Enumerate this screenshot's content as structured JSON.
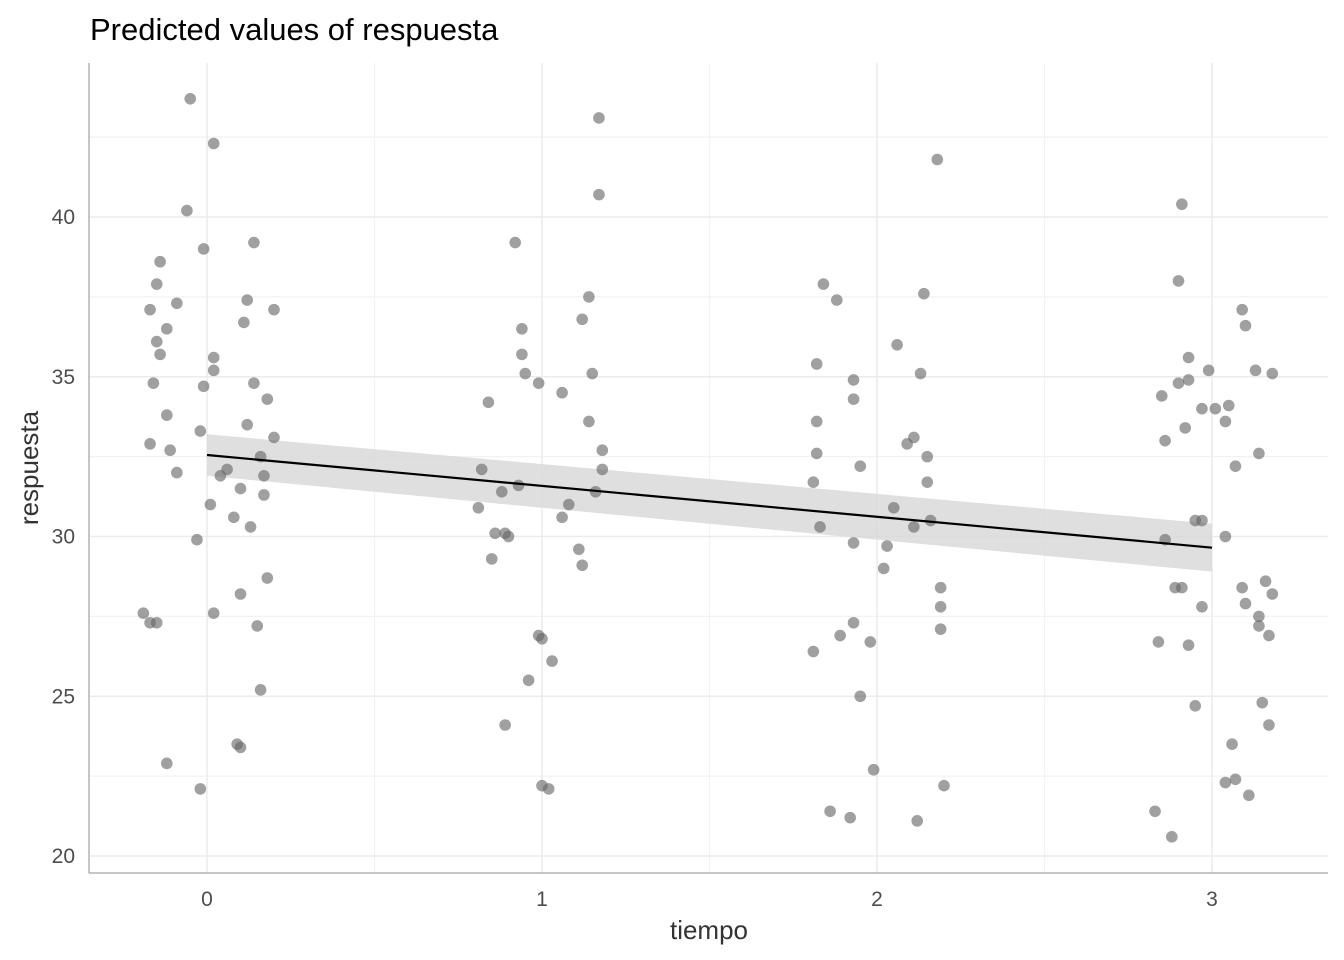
{
  "chart_data": {
    "type": "scatter",
    "title": "Predicted values of respuesta",
    "xlabel": "tiempo",
    "ylabel": "respuesta",
    "xlim": [
      -0.35,
      3.35
    ],
    "ylim": [
      19.5,
      45.0
    ],
    "x_ticks": [
      0,
      1,
      2,
      3
    ],
    "x_tick_labels": [
      "0",
      "1",
      "2",
      "3"
    ],
    "y_ticks": [
      20,
      25,
      30,
      35,
      40
    ],
    "y_tick_labels": [
      "20",
      "25",
      "30",
      "35",
      "40"
    ],
    "x_minor_ticks": [
      0.5,
      1.5,
      2.5
    ],
    "y_minor_ticks": [
      22.5,
      27.5,
      32.5,
      37.5,
      42.5
    ],
    "grid": true,
    "colors": {
      "points": "#666666",
      "line": "#000000",
      "ribbon": "#d9d9d9",
      "grid": "#ebebeb"
    },
    "fit_line": {
      "x": [
        0,
        3
      ],
      "y": [
        32.55,
        29.65
      ]
    },
    "ribbon": {
      "x": [
        0,
        3
      ],
      "upper": [
        33.2,
        30.4
      ],
      "lower": [
        31.9,
        28.9
      ]
    },
    "points": [
      {
        "x": -0.05,
        "y": 43.7
      },
      {
        "x": 0.02,
        "y": 42.3
      },
      {
        "x": -0.06,
        "y": 40.2
      },
      {
        "x": -0.01,
        "y": 39.0
      },
      {
        "x": 0.14,
        "y": 39.2
      },
      {
        "x": -0.14,
        "y": 38.6
      },
      {
        "x": -0.15,
        "y": 37.9
      },
      {
        "x": -0.09,
        "y": 37.3
      },
      {
        "x": -0.17,
        "y": 37.1
      },
      {
        "x": 0.12,
        "y": 37.4
      },
      {
        "x": 0.2,
        "y": 37.1
      },
      {
        "x": 0.11,
        "y": 36.7
      },
      {
        "x": -0.12,
        "y": 36.5
      },
      {
        "x": -0.15,
        "y": 36.1
      },
      {
        "x": -0.14,
        "y": 35.7
      },
      {
        "x": 0.02,
        "y": 35.6
      },
      {
        "x": 0.02,
        "y": 35.2
      },
      {
        "x": -0.16,
        "y": 34.8
      },
      {
        "x": -0.01,
        "y": 34.7
      },
      {
        "x": 0.14,
        "y": 34.8
      },
      {
        "x": 0.18,
        "y": 34.3
      },
      {
        "x": -0.12,
        "y": 33.8
      },
      {
        "x": 0.12,
        "y": 33.5
      },
      {
        "x": -0.02,
        "y": 33.3
      },
      {
        "x": 0.2,
        "y": 33.1
      },
      {
        "x": -0.17,
        "y": 32.9
      },
      {
        "x": -0.11,
        "y": 32.7
      },
      {
        "x": 0.16,
        "y": 32.5
      },
      {
        "x": 0.06,
        "y": 32.1
      },
      {
        "x": -0.09,
        "y": 32.0
      },
      {
        "x": 0.04,
        "y": 31.9
      },
      {
        "x": 0.17,
        "y": 31.9
      },
      {
        "x": 0.1,
        "y": 31.5
      },
      {
        "x": 0.17,
        "y": 31.3
      },
      {
        "x": 0.01,
        "y": 31.0
      },
      {
        "x": 0.08,
        "y": 30.6
      },
      {
        "x": 0.13,
        "y": 30.3
      },
      {
        "x": -0.03,
        "y": 29.9
      },
      {
        "x": 0.18,
        "y": 28.7
      },
      {
        "x": 0.1,
        "y": 28.2
      },
      {
        "x": -0.19,
        "y": 27.6
      },
      {
        "x": 0.02,
        "y": 27.6
      },
      {
        "x": -0.17,
        "y": 27.3
      },
      {
        "x": -0.15,
        "y": 27.3
      },
      {
        "x": 0.15,
        "y": 27.2
      },
      {
        "x": 0.16,
        "y": 25.2
      },
      {
        "x": 0.09,
        "y": 23.5
      },
      {
        "x": 0.1,
        "y": 23.4
      },
      {
        "x": -0.12,
        "y": 22.9
      },
      {
        "x": -0.02,
        "y": 22.1
      },
      {
        "x": 1.17,
        "y": 43.1
      },
      {
        "x": 1.17,
        "y": 40.7
      },
      {
        "x": 0.92,
        "y": 39.2
      },
      {
        "x": 1.14,
        "y": 37.5
      },
      {
        "x": 1.12,
        "y": 36.8
      },
      {
        "x": 0.94,
        "y": 36.5
      },
      {
        "x": 0.94,
        "y": 35.7
      },
      {
        "x": 0.95,
        "y": 35.1
      },
      {
        "x": 1.15,
        "y": 35.1
      },
      {
        "x": 0.99,
        "y": 34.8
      },
      {
        "x": 1.06,
        "y": 34.5
      },
      {
        "x": 0.84,
        "y": 34.2
      },
      {
        "x": 1.14,
        "y": 33.6
      },
      {
        "x": 1.18,
        "y": 32.7
      },
      {
        "x": 0.82,
        "y": 32.1
      },
      {
        "x": 1.18,
        "y": 32.1
      },
      {
        "x": 0.93,
        "y": 31.6
      },
      {
        "x": 0.88,
        "y": 31.4
      },
      {
        "x": 1.16,
        "y": 31.4
      },
      {
        "x": 1.08,
        "y": 31.0
      },
      {
        "x": 0.81,
        "y": 30.9
      },
      {
        "x": 1.06,
        "y": 30.6
      },
      {
        "x": 0.86,
        "y": 30.1
      },
      {
        "x": 0.89,
        "y": 30.1
      },
      {
        "x": 0.9,
        "y": 30.0
      },
      {
        "x": 1.11,
        "y": 29.6
      },
      {
        "x": 0.85,
        "y": 29.3
      },
      {
        "x": 1.12,
        "y": 29.1
      },
      {
        "x": 0.99,
        "y": 26.9
      },
      {
        "x": 1.0,
        "y": 26.8
      },
      {
        "x": 1.03,
        "y": 26.1
      },
      {
        "x": 0.96,
        "y": 25.5
      },
      {
        "x": 0.89,
        "y": 24.1
      },
      {
        "x": 1.0,
        "y": 22.2
      },
      {
        "x": 1.02,
        "y": 22.1
      },
      {
        "x": 2.18,
        "y": 41.8
      },
      {
        "x": 1.84,
        "y": 37.9
      },
      {
        "x": 1.88,
        "y": 37.4
      },
      {
        "x": 2.14,
        "y": 37.6
      },
      {
        "x": 2.06,
        "y": 36.0
      },
      {
        "x": 1.82,
        "y": 35.4
      },
      {
        "x": 2.13,
        "y": 35.1
      },
      {
        "x": 1.93,
        "y": 34.9
      },
      {
        "x": 1.93,
        "y": 34.3
      },
      {
        "x": 1.82,
        "y": 33.6
      },
      {
        "x": 2.11,
        "y": 33.1
      },
      {
        "x": 2.09,
        "y": 32.9
      },
      {
        "x": 1.82,
        "y": 32.6
      },
      {
        "x": 2.15,
        "y": 32.5
      },
      {
        "x": 1.95,
        "y": 32.2
      },
      {
        "x": 1.81,
        "y": 31.7
      },
      {
        "x": 2.15,
        "y": 31.7
      },
      {
        "x": 2.05,
        "y": 30.9
      },
      {
        "x": 2.16,
        "y": 30.5
      },
      {
        "x": 1.83,
        "y": 30.3
      },
      {
        "x": 2.11,
        "y": 30.3
      },
      {
        "x": 1.93,
        "y": 29.8
      },
      {
        "x": 2.03,
        "y": 29.7
      },
      {
        "x": 2.02,
        "y": 29.0
      },
      {
        "x": 2.19,
        "y": 28.4
      },
      {
        "x": 2.19,
        "y": 27.8
      },
      {
        "x": 1.93,
        "y": 27.3
      },
      {
        "x": 2.19,
        "y": 27.1
      },
      {
        "x": 1.89,
        "y": 26.9
      },
      {
        "x": 1.98,
        "y": 26.7
      },
      {
        "x": 1.81,
        "y": 26.4
      },
      {
        "x": 1.95,
        "y": 25.0
      },
      {
        "x": 1.99,
        "y": 22.7
      },
      {
        "x": 2.2,
        "y": 22.2
      },
      {
        "x": 1.86,
        "y": 21.4
      },
      {
        "x": 1.92,
        "y": 21.2
      },
      {
        "x": 2.12,
        "y": 21.1
      },
      {
        "x": 2.91,
        "y": 40.4
      },
      {
        "x": 2.9,
        "y": 38.0
      },
      {
        "x": 3.09,
        "y": 37.1
      },
      {
        "x": 3.1,
        "y": 36.6
      },
      {
        "x": 2.93,
        "y": 35.6
      },
      {
        "x": 3.13,
        "y": 35.2
      },
      {
        "x": 2.99,
        "y": 35.2
      },
      {
        "x": 3.18,
        "y": 35.1
      },
      {
        "x": 2.93,
        "y": 34.9
      },
      {
        "x": 2.9,
        "y": 34.8
      },
      {
        "x": 2.85,
        "y": 34.4
      },
      {
        "x": 2.97,
        "y": 34.0
      },
      {
        "x": 3.01,
        "y": 34.0
      },
      {
        "x": 3.05,
        "y": 34.1
      },
      {
        "x": 3.04,
        "y": 33.6
      },
      {
        "x": 2.92,
        "y": 33.4
      },
      {
        "x": 2.86,
        "y": 33.0
      },
      {
        "x": 3.14,
        "y": 32.6
      },
      {
        "x": 3.07,
        "y": 32.2
      },
      {
        "x": 2.95,
        "y": 30.5
      },
      {
        "x": 2.97,
        "y": 30.5
      },
      {
        "x": 3.04,
        "y": 30.0
      },
      {
        "x": 2.86,
        "y": 29.9
      },
      {
        "x": 3.16,
        "y": 28.6
      },
      {
        "x": 2.89,
        "y": 28.4
      },
      {
        "x": 2.91,
        "y": 28.4
      },
      {
        "x": 3.09,
        "y": 28.4
      },
      {
        "x": 3.18,
        "y": 28.2
      },
      {
        "x": 3.1,
        "y": 27.9
      },
      {
        "x": 2.97,
        "y": 27.8
      },
      {
        "x": 3.14,
        "y": 27.5
      },
      {
        "x": 3.14,
        "y": 27.2
      },
      {
        "x": 3.17,
        "y": 26.9
      },
      {
        "x": 2.84,
        "y": 26.7
      },
      {
        "x": 2.93,
        "y": 26.6
      },
      {
        "x": 3.15,
        "y": 24.8
      },
      {
        "x": 2.95,
        "y": 24.7
      },
      {
        "x": 3.17,
        "y": 24.1
      },
      {
        "x": 3.06,
        "y": 23.5
      },
      {
        "x": 3.07,
        "y": 22.4
      },
      {
        "x": 3.04,
        "y": 22.3
      },
      {
        "x": 3.11,
        "y": 21.9
      },
      {
        "x": 2.83,
        "y": 21.4
      },
      {
        "x": 2.88,
        "y": 20.6
      }
    ]
  }
}
